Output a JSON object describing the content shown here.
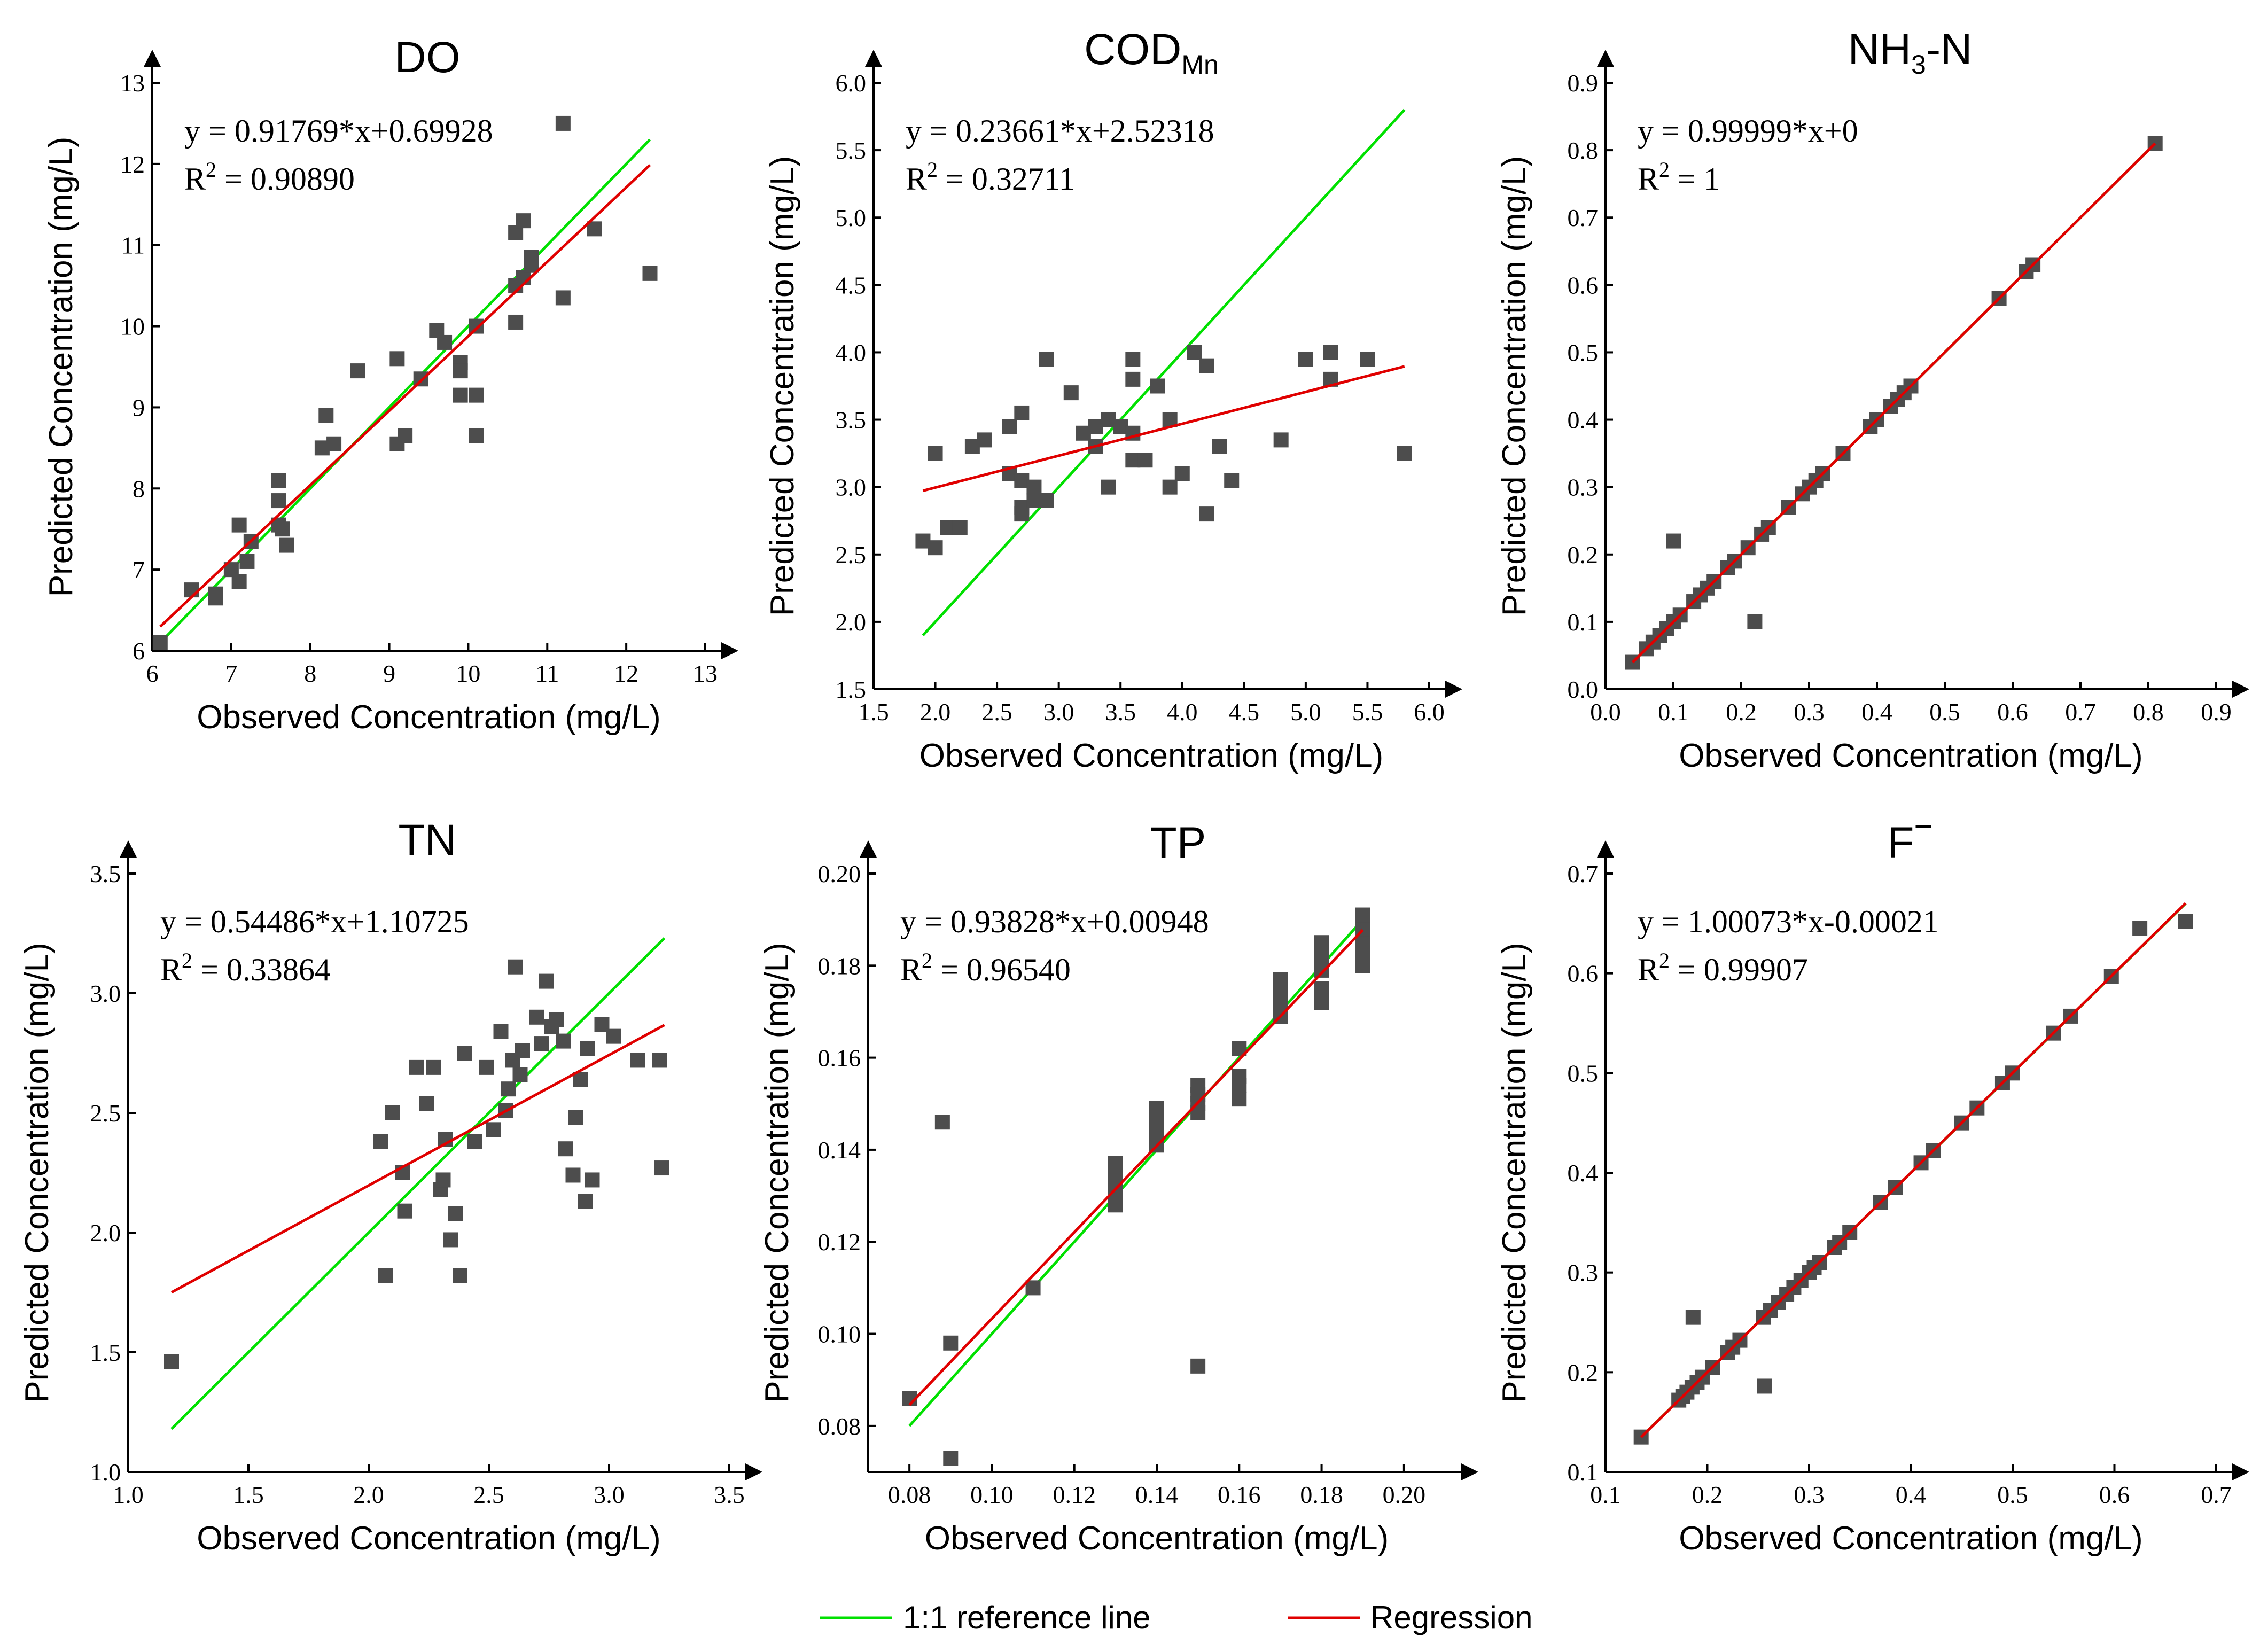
{
  "legend": {
    "ref_label": "1:1 reference line",
    "reg_label": "Regression",
    "ref_color": "#00e000",
    "reg_color": "#e00000"
  },
  "marker_color": "#4d4d4d",
  "chart_data": [
    {
      "type": "scatter",
      "title": "DO",
      "title_subscript": "",
      "xlabel": "Observed Concentration (mg/L)",
      "ylabel": "Predicted Concentration (mg/L)",
      "xlim": [
        6,
        13
      ],
      "ylim": [
        6,
        13
      ],
      "xticks": [
        "6",
        "7",
        "8",
        "9",
        "10",
        "11",
        "12",
        "13"
      ],
      "yticks": [
        "6",
        "7",
        "8",
        "9",
        "10",
        "11",
        "12",
        "13"
      ],
      "equation": "y = 0.91769*x+0.69928",
      "r2_value": "0.90890",
      "regression": {
        "slope": 0.91769,
        "intercept": 0.69928
      },
      "ref_range": [
        6.1,
        12.3
      ],
      "reg_range": [
        6.1,
        12.3
      ],
      "points": [
        [
          6.1,
          6.1
        ],
        [
          6.5,
          6.75
        ],
        [
          6.8,
          6.7
        ],
        [
          6.8,
          6.65
        ],
        [
          7.0,
          7.0
        ],
        [
          7.1,
          6.85
        ],
        [
          7.1,
          7.55
        ],
        [
          7.2,
          7.1
        ],
        [
          7.25,
          7.35
        ],
        [
          7.6,
          7.85
        ],
        [
          7.6,
          8.1
        ],
        [
          7.6,
          7.55
        ],
        [
          7.65,
          7.5
        ],
        [
          7.7,
          7.3
        ],
        [
          8.15,
          8.5
        ],
        [
          8.2,
          8.9
        ],
        [
          8.3,
          8.55
        ],
        [
          8.6,
          9.45
        ],
        [
          9.1,
          9.6
        ],
        [
          9.1,
          8.55
        ],
        [
          9.2,
          8.65
        ],
        [
          9.4,
          9.35
        ],
        [
          9.6,
          9.95
        ],
        [
          9.7,
          9.8
        ],
        [
          9.9,
          9.55
        ],
        [
          9.9,
          9.45
        ],
        [
          9.9,
          9.15
        ],
        [
          10.1,
          9.15
        ],
        [
          10.1,
          8.65
        ],
        [
          10.1,
          10.0
        ],
        [
          10.6,
          10.05
        ],
        [
          10.6,
          10.5
        ],
        [
          10.6,
          11.15
        ],
        [
          10.7,
          11.3
        ],
        [
          10.7,
          10.6
        ],
        [
          10.8,
          10.85
        ],
        [
          10.8,
          10.75
        ],
        [
          11.2,
          12.5
        ],
        [
          11.2,
          10.35
        ],
        [
          11.6,
          11.2
        ],
        [
          12.3,
          10.65
        ]
      ]
    },
    {
      "type": "scatter",
      "title": "COD",
      "title_subscript": "Mn",
      "xlabel": "Observed Concentration (mg/L)",
      "ylabel": "Predicted Concentration (mg/L)",
      "xlim": [
        1.5,
        6.0
      ],
      "ylim": [
        1.5,
        6.0
      ],
      "xticks": [
        "1.5",
        "2.0",
        "2.5",
        "3.0",
        "3.5",
        "4.0",
        "4.5",
        "5.0",
        "5.5",
        "6.0"
      ],
      "yticks": [
        "1.5",
        "2.0",
        "2.5",
        "3.0",
        "3.5",
        "4.0",
        "4.5",
        "5.0",
        "5.5",
        "6.0"
      ],
      "equation": "y = 0.23661*x+2.52318",
      "r2_value": "0.32711",
      "regression": {
        "slope": 0.23661,
        "intercept": 2.52318
      },
      "ref_range": [
        1.9,
        5.8
      ],
      "reg_range": [
        1.9,
        5.8
      ],
      "points": [
        [
          1.9,
          2.6
        ],
        [
          2.0,
          2.55
        ],
        [
          2.0,
          3.25
        ],
        [
          2.1,
          2.7
        ],
        [
          2.2,
          2.7
        ],
        [
          2.3,
          3.3
        ],
        [
          2.4,
          3.35
        ],
        [
          2.6,
          3.45
        ],
        [
          2.6,
          3.1
        ],
        [
          2.7,
          3.55
        ],
        [
          2.7,
          3.05
        ],
        [
          2.7,
          2.85
        ],
        [
          2.7,
          2.8
        ],
        [
          2.8,
          3.0
        ],
        [
          2.8,
          2.9
        ],
        [
          2.9,
          3.95
        ],
        [
          2.9,
          2.9
        ],
        [
          3.1,
          3.7
        ],
        [
          3.2,
          3.4
        ],
        [
          3.3,
          3.45
        ],
        [
          3.3,
          3.3
        ],
        [
          3.4,
          3.5
        ],
        [
          3.4,
          3.0
        ],
        [
          3.5,
          3.45
        ],
        [
          3.6,
          3.95
        ],
        [
          3.6,
          3.8
        ],
        [
          3.6,
          3.4
        ],
        [
          3.6,
          3.2
        ],
        [
          3.7,
          3.2
        ],
        [
          3.8,
          3.75
        ],
        [
          3.9,
          3.5
        ],
        [
          3.9,
          3.0
        ],
        [
          4.0,
          3.1
        ],
        [
          4.1,
          4.0
        ],
        [
          4.2,
          3.9
        ],
        [
          4.2,
          2.8
        ],
        [
          4.3,
          3.3
        ],
        [
          4.4,
          3.05
        ],
        [
          4.8,
          3.35
        ],
        [
          5.0,
          3.95
        ],
        [
          5.2,
          4.0
        ],
        [
          5.2,
          3.8
        ],
        [
          5.5,
          3.95
        ],
        [
          5.8,
          3.25
        ]
      ]
    },
    {
      "type": "scatter",
      "title": "NH",
      "title_subscript": "3",
      "title_suffix": "-N",
      "xlabel": "Observed Concentration (mg/L)",
      "ylabel": "Predicted Concentration (mg/L)",
      "xlim": [
        0.0,
        0.9
      ],
      "ylim": [
        0.0,
        0.9
      ],
      "xticks": [
        "0.0",
        "0.1",
        "0.2",
        "0.3",
        "0.4",
        "0.5",
        "0.6",
        "0.7",
        "0.8",
        "0.9"
      ],
      "yticks": [
        "0.0",
        "0.1",
        "0.2",
        "0.3",
        "0.4",
        "0.5",
        "0.6",
        "0.7",
        "0.8",
        "0.9"
      ],
      "equation": "y = 0.99999*x+0",
      "r2_value": "1",
      "regression": {
        "slope": 0.99999,
        "intercept": 0
      },
      "ref_range": [
        0.04,
        0.81
      ],
      "reg_range": [
        0.04,
        0.81
      ],
      "points": [
        [
          0.04,
          0.04
        ],
        [
          0.06,
          0.06
        ],
        [
          0.07,
          0.07
        ],
        [
          0.08,
          0.08
        ],
        [
          0.09,
          0.09
        ],
        [
          0.1,
          0.1
        ],
        [
          0.1,
          0.22
        ],
        [
          0.11,
          0.11
        ],
        [
          0.13,
          0.13
        ],
        [
          0.14,
          0.14
        ],
        [
          0.15,
          0.15
        ],
        [
          0.16,
          0.16
        ],
        [
          0.18,
          0.18
        ],
        [
          0.19,
          0.19
        ],
        [
          0.21,
          0.21
        ],
        [
          0.22,
          0.1
        ],
        [
          0.23,
          0.23
        ],
        [
          0.24,
          0.24
        ],
        [
          0.27,
          0.27
        ],
        [
          0.29,
          0.29
        ],
        [
          0.3,
          0.3
        ],
        [
          0.31,
          0.31
        ],
        [
          0.32,
          0.32
        ],
        [
          0.35,
          0.35
        ],
        [
          0.39,
          0.39
        ],
        [
          0.4,
          0.4
        ],
        [
          0.42,
          0.42
        ],
        [
          0.43,
          0.43
        ],
        [
          0.44,
          0.44
        ],
        [
          0.45,
          0.45
        ],
        [
          0.58,
          0.58
        ],
        [
          0.62,
          0.62
        ],
        [
          0.63,
          0.63
        ],
        [
          0.81,
          0.81
        ]
      ]
    },
    {
      "type": "scatter",
      "title": "TN",
      "title_subscript": "",
      "xlabel": "Observed Concentration (mg/L)",
      "ylabel": "Predicted Concentration (mg/L)",
      "xlim": [
        1.0,
        3.5
      ],
      "ylim": [
        1.0,
        3.5
      ],
      "xticks": [
        "1.0",
        "1.5",
        "2.0",
        "2.5",
        "3.0",
        "3.5"
      ],
      "yticks": [
        "1.0",
        "1.5",
        "2.0",
        "2.5",
        "3.0",
        "3.5"
      ],
      "equation": "y = 0.54486*x+1.10725",
      "r2_value": "0.33864",
      "regression": {
        "slope": 0.54486,
        "intercept": 1.10725
      },
      "ref_range": [
        1.18,
        3.23
      ],
      "reg_range": [
        1.18,
        3.23
      ],
      "points": [
        [
          1.18,
          1.46
        ],
        [
          2.05,
          2.38
        ],
        [
          2.07,
          1.82
        ],
        [
          2.1,
          2.5
        ],
        [
          2.14,
          2.25
        ],
        [
          2.15,
          2.09
        ],
        [
          2.2,
          2.69
        ],
        [
          2.24,
          2.54
        ],
        [
          2.27,
          2.69
        ],
        [
          2.3,
          2.18
        ],
        [
          2.31,
          2.22
        ],
        [
          2.32,
          2.39
        ],
        [
          2.34,
          1.97
        ],
        [
          2.36,
          2.08
        ],
        [
          2.38,
          1.82
        ],
        [
          2.4,
          2.75
        ],
        [
          2.44,
          2.38
        ],
        [
          2.49,
          2.69
        ],
        [
          2.52,
          2.43
        ],
        [
          2.55,
          2.84
        ],
        [
          2.57,
          2.51
        ],
        [
          2.58,
          2.6
        ],
        [
          2.6,
          2.72
        ],
        [
          2.61,
          3.11
        ],
        [
          2.63,
          2.66
        ],
        [
          2.64,
          2.76
        ],
        [
          2.7,
          2.9
        ],
        [
          2.72,
          2.79
        ],
        [
          2.74,
          3.05
        ],
        [
          2.76,
          2.86
        ],
        [
          2.78,
          2.89
        ],
        [
          2.81,
          2.8
        ],
        [
          2.82,
          2.35
        ],
        [
          2.85,
          2.24
        ],
        [
          2.86,
          2.48
        ],
        [
          2.88,
          2.64
        ],
        [
          2.9,
          2.13
        ],
        [
          2.91,
          2.77
        ],
        [
          2.93,
          2.22
        ],
        [
          2.97,
          2.87
        ],
        [
          3.02,
          2.82
        ],
        [
          3.12,
          2.72
        ],
        [
          3.21,
          2.72
        ],
        [
          3.22,
          2.27
        ]
      ]
    },
    {
      "type": "scatter",
      "title": "TP",
      "title_subscript": "",
      "xlabel": "Observed Concentration (mg/L)",
      "ylabel": "Predicted Concentration (mg/L)",
      "xlim": [
        0.07,
        0.21
      ],
      "ylim": [
        0.07,
        0.2
      ],
      "xticks": [
        "0.08",
        "0.10",
        "0.12",
        "0.14",
        "0.16",
        "0.18",
        "0.20"
      ],
      "yticks": [
        "0.08",
        "0.10",
        "0.12",
        "0.14",
        "0.16",
        "0.18",
        "0.20"
      ],
      "equation": "y = 0.93828*x+0.00948",
      "r2_value": "0.96540",
      "regression": {
        "slope": 0.93828,
        "intercept": 0.00948
      },
      "ref_range": [
        0.08,
        0.19
      ],
      "reg_range": [
        0.08,
        0.19
      ],
      "points": [
        [
          0.08,
          0.086
        ],
        [
          0.088,
          0.146
        ],
        [
          0.09,
          0.098
        ],
        [
          0.09,
          0.073
        ],
        [
          0.11,
          0.11
        ],
        [
          0.13,
          0.128
        ],
        [
          0.13,
          0.131
        ],
        [
          0.13,
          0.134
        ],
        [
          0.13,
          0.137
        ],
        [
          0.14,
          0.141
        ],
        [
          0.14,
          0.143
        ],
        [
          0.14,
          0.145
        ],
        [
          0.14,
          0.147
        ],
        [
          0.14,
          0.149
        ],
        [
          0.15,
          0.148
        ],
        [
          0.15,
          0.15
        ],
        [
          0.15,
          0.152
        ],
        [
          0.15,
          0.154
        ],
        [
          0.15,
          0.093
        ],
        [
          0.16,
          0.151
        ],
        [
          0.16,
          0.154
        ],
        [
          0.16,
          0.156
        ],
        [
          0.16,
          0.162
        ],
        [
          0.17,
          0.169
        ],
        [
          0.17,
          0.172
        ],
        [
          0.17,
          0.175
        ],
        [
          0.17,
          0.177
        ],
        [
          0.18,
          0.172
        ],
        [
          0.18,
          0.175
        ],
        [
          0.18,
          0.179
        ],
        [
          0.18,
          0.182
        ],
        [
          0.18,
          0.185
        ],
        [
          0.19,
          0.18
        ],
        [
          0.19,
          0.183
        ],
        [
          0.19,
          0.186
        ],
        [
          0.19,
          0.188
        ],
        [
          0.19,
          0.191
        ]
      ]
    },
    {
      "type": "scatter",
      "title": "F",
      "title_subscript": "",
      "title_super": "−",
      "xlabel": "Observed Concentration (mg/L)",
      "ylabel": "Predicted Concentration (mg/L)",
      "xlim": [
        0.1,
        0.7
      ],
      "ylim": [
        0.1,
        0.7
      ],
      "xticks": [
        "0.1",
        "0.2",
        "0.3",
        "0.4",
        "0.5",
        "0.6",
        "0.7"
      ],
      "yticks": [
        "0.1",
        "0.2",
        "0.3",
        "0.4",
        "0.5",
        "0.6",
        "0.7"
      ],
      "equation": "y = 1.00073*x-0.00021",
      "r2_value": "0.99907",
      "regression": {
        "slope": 1.00073,
        "intercept": -0.00021
      },
      "ref_range": [
        0.135,
        0.67
      ],
      "reg_range": [
        0.135,
        0.67
      ],
      "points": [
        [
          0.135,
          0.135
        ],
        [
          0.172,
          0.172
        ],
        [
          0.176,
          0.176
        ],
        [
          0.18,
          0.18
        ],
        [
          0.185,
          0.185
        ],
        [
          0.186,
          0.255
        ],
        [
          0.19,
          0.19
        ],
        [
          0.195,
          0.195
        ],
        [
          0.205,
          0.205
        ],
        [
          0.22,
          0.22
        ],
        [
          0.225,
          0.225
        ],
        [
          0.232,
          0.232
        ],
        [
          0.255,
          0.255
        ],
        [
          0.256,
          0.186
        ],
        [
          0.262,
          0.262
        ],
        [
          0.27,
          0.27
        ],
        [
          0.278,
          0.278
        ],
        [
          0.285,
          0.285
        ],
        [
          0.292,
          0.292
        ],
        [
          0.3,
          0.3
        ],
        [
          0.305,
          0.305
        ],
        [
          0.31,
          0.31
        ],
        [
          0.325,
          0.325
        ],
        [
          0.33,
          0.33
        ],
        [
          0.34,
          0.34
        ],
        [
          0.37,
          0.37
        ],
        [
          0.385,
          0.385
        ],
        [
          0.41,
          0.41
        ],
        [
          0.422,
          0.422
        ],
        [
          0.45,
          0.45
        ],
        [
          0.465,
          0.465
        ],
        [
          0.49,
          0.49
        ],
        [
          0.5,
          0.5
        ],
        [
          0.54,
          0.54
        ],
        [
          0.557,
          0.557
        ],
        [
          0.597,
          0.597
        ],
        [
          0.625,
          0.645
        ],
        [
          0.67,
          0.652
        ]
      ]
    }
  ]
}
